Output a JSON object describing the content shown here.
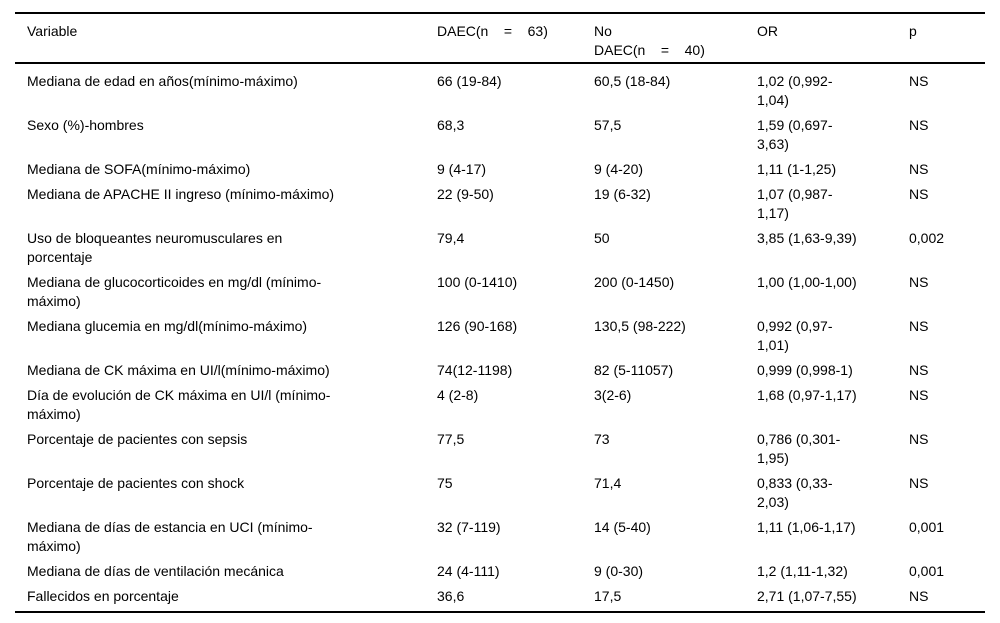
{
  "colors": {
    "background": "#ffffff",
    "text": "#000000",
    "rule": "#000000"
  },
  "table": {
    "columns": {
      "variable": "Variable",
      "daec": "DAEC(n    =    63)",
      "no_daec": "No\nDAEC(n    =    40)",
      "or": "OR",
      "p": "p"
    },
    "rows": [
      {
        "variable": "Mediana de edad en años(mínimo-máximo)",
        "daec": "66 (19-84)",
        "no_daec": "60,5 (18-84)",
        "or": "1,02 (0,992-\n1,04)",
        "p": "NS"
      },
      {
        "variable": "Sexo (%)-hombres",
        "daec": "68,3",
        "no_daec": "57,5",
        "or": "1,59 (0,697-\n3,63)",
        "p": "NS"
      },
      {
        "variable": "Mediana de SOFA(mínimo-máximo)",
        "daec": "9 (4-17)",
        "no_daec": "9 (4-20)",
        "or": "1,11 (1-1,25)",
        "p": "NS"
      },
      {
        "variable": "Mediana de APACHE II ingreso (mínimo-máximo)",
        "daec": "22 (9-50)",
        "no_daec": "19 (6-32)",
        "or": "1,07 (0,987-\n1,17)",
        "p": "NS"
      },
      {
        "variable": "Uso de bloqueantes neuromusculares en\nporcentaje",
        "daec": "79,4",
        "no_daec": "50",
        "or": "3,85 (1,63-9,39)",
        "p": "0,002"
      },
      {
        "variable": "Mediana de glucocorticoides en mg/dl (mínimo-\nmáximo)",
        "daec": "100 (0-1410)",
        "no_daec": "200 (0-1450)",
        "or": "1,00 (1,00-1,00)",
        "p": "NS"
      },
      {
        "variable": "Mediana glucemia en mg/dl(mínimo-máximo)",
        "daec": "126 (90-168)",
        "no_daec": "130,5 (98-222)",
        "or": "0,992 (0,97-\n1,01)",
        "p": "NS"
      },
      {
        "variable": "Mediana de CK máxima en UI/l(mínimo-máximo)",
        "daec": "74(12-1198)",
        "no_daec": "82 (5-11057)",
        "or": "0,999 (0,998-1)",
        "p": "NS"
      },
      {
        "variable": "Día de evolución de CK máxima en UI/l (mínimo-\nmáximo)",
        "daec": "4 (2-8)",
        "no_daec": "3(2-6)",
        "or": "1,68 (0,97-1,17)",
        "p": "NS"
      },
      {
        "variable": "Porcentaje de pacientes con sepsis",
        "daec": "77,5",
        "no_daec": "73",
        "or": "0,786 (0,301-\n1,95)",
        "p": "NS"
      },
      {
        "variable": "Porcentaje de pacientes con shock",
        "daec": "75",
        "no_daec": "71,4",
        "or": "0,833 (0,33-\n2,03)",
        "p": "NS"
      },
      {
        "variable": "Mediana de días de estancia en UCI (mínimo-\nmáximo)",
        "daec": "32 (7-119)",
        "no_daec": "14 (5-40)",
        "or": "1,11 (1,06-1,17)",
        "p": "0,001"
      },
      {
        "variable": "Mediana de días de ventilación mecánica",
        "daec": "24 (4-111)",
        "no_daec": "9 (0-30)",
        "or": "1,2 (1,11-1,32)",
        "p": "0,001"
      },
      {
        "variable": "Fallecidos en porcentaje",
        "daec": "36,6",
        "no_daec": "17,5",
        "or": "2,71 (1,07-7,55)",
        "p": "NS"
      }
    ]
  }
}
